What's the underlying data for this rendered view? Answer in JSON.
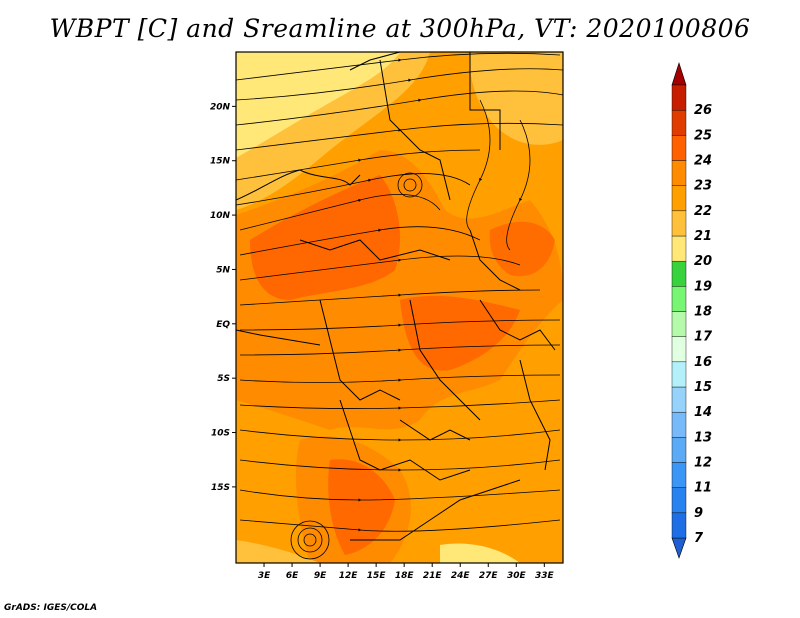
{
  "title": "WBPT [C] and Sreamline at 300hPa, VT: 2020100806",
  "credit": "GrADS: IGES/COLA",
  "map": {
    "lon_range": [
      0,
      35
    ],
    "lat_range": [
      -22,
      25
    ],
    "lat_ticks": [
      {
        "value": 20,
        "label": "20N"
      },
      {
        "value": 15,
        "label": "15N"
      },
      {
        "value": 10,
        "label": "10N"
      },
      {
        "value": 5,
        "label": "5N"
      },
      {
        "value": 0,
        "label": "EQ"
      },
      {
        "value": -5,
        "label": "5S"
      },
      {
        "value": -10,
        "label": "10S"
      },
      {
        "value": -15,
        "label": "15S"
      }
    ],
    "lon_ticks": [
      {
        "value": 3,
        "label": "3E"
      },
      {
        "value": 6,
        "label": "6E"
      },
      {
        "value": 9,
        "label": "9E"
      },
      {
        "value": 12,
        "label": "12E"
      },
      {
        "value": 15,
        "label": "15E"
      },
      {
        "value": 18,
        "label": "18E"
      },
      {
        "value": 21,
        "label": "21E"
      },
      {
        "value": 24,
        "label": "24E"
      },
      {
        "value": 27,
        "label": "27E"
      },
      {
        "value": 30,
        "label": "30E"
      },
      {
        "value": 33,
        "label": "33E"
      }
    ]
  },
  "colorbar": {
    "levels": [
      {
        "label": "7",
        "color": "#1e6ee6"
      },
      {
        "label": "9",
        "color": "#2882f0"
      },
      {
        "label": "11",
        "color": "#3c96f5"
      },
      {
        "label": "12",
        "color": "#5aaaf5"
      },
      {
        "label": "13",
        "color": "#78b9fa"
      },
      {
        "label": "14",
        "color": "#96d2fa"
      },
      {
        "label": "15",
        "color": "#b4f0fa"
      },
      {
        "label": "16",
        "color": "#e1ffe1"
      },
      {
        "label": "17",
        "color": "#b4faaa"
      },
      {
        "label": "18",
        "color": "#78f573"
      },
      {
        "label": "19",
        "color": "#37d23c"
      },
      {
        "label": "20",
        "color": "#ffe878"
      },
      {
        "label": "21",
        "color": "#ffc03c"
      },
      {
        "label": "22",
        "color": "#ffa000"
      },
      {
        "label": "23",
        "color": "#ff8c00"
      },
      {
        "label": "24",
        "color": "#ff6000"
      },
      {
        "label": "25",
        "color": "#e13c00"
      },
      {
        "label": "26",
        "color": "#c81e00"
      }
    ],
    "low_color": "#1e5fd2",
    "high_color": "#a50000"
  }
}
